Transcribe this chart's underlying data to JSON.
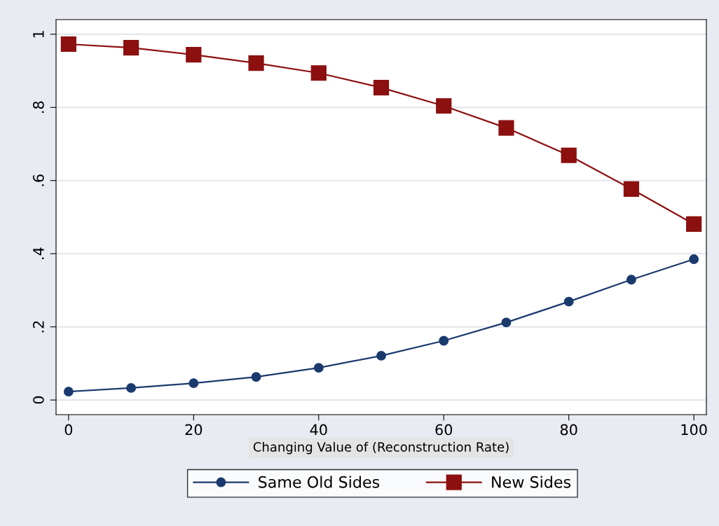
{
  "chart_data": {
    "type": "line",
    "xlabel": "Changing Value of (Reconstruction Rate)",
    "x": [
      0,
      10,
      20,
      30,
      40,
      50,
      60,
      70,
      80,
      90,
      100
    ],
    "series": [
      {
        "name": "Same Old Sides",
        "color": "#1a3a6e",
        "marker": "circle",
        "values": [
          0.023,
          0.033,
          0.046,
          0.063,
          0.088,
          0.121,
          0.162,
          0.212,
          0.269,
          0.329,
          0.385
        ]
      },
      {
        "name": "New Sides",
        "color": "#8c1010",
        "marker": "square",
        "values": [
          0.973,
          0.963,
          0.944,
          0.921,
          0.894,
          0.854,
          0.804,
          0.744,
          0.669,
          0.577,
          0.481
        ]
      }
    ],
    "xlim": [
      -2,
      102
    ],
    "xticks": [
      0,
      20,
      40,
      60,
      80,
      100
    ],
    "ylim": [
      -0.04,
      1.04
    ],
    "yticks": [
      {
        "value": 0,
        "label": "0"
      },
      {
        "value": 0.2,
        "label": ".2"
      },
      {
        "value": 0.4,
        "label": ".4"
      },
      {
        "value": 0.6,
        "label": ".6"
      },
      {
        "value": 0.8,
        "label": ".8"
      },
      {
        "value": 1,
        "label": "1"
      }
    ],
    "grid": "y",
    "legend": "bottom",
    "line_style": "solid"
  }
}
